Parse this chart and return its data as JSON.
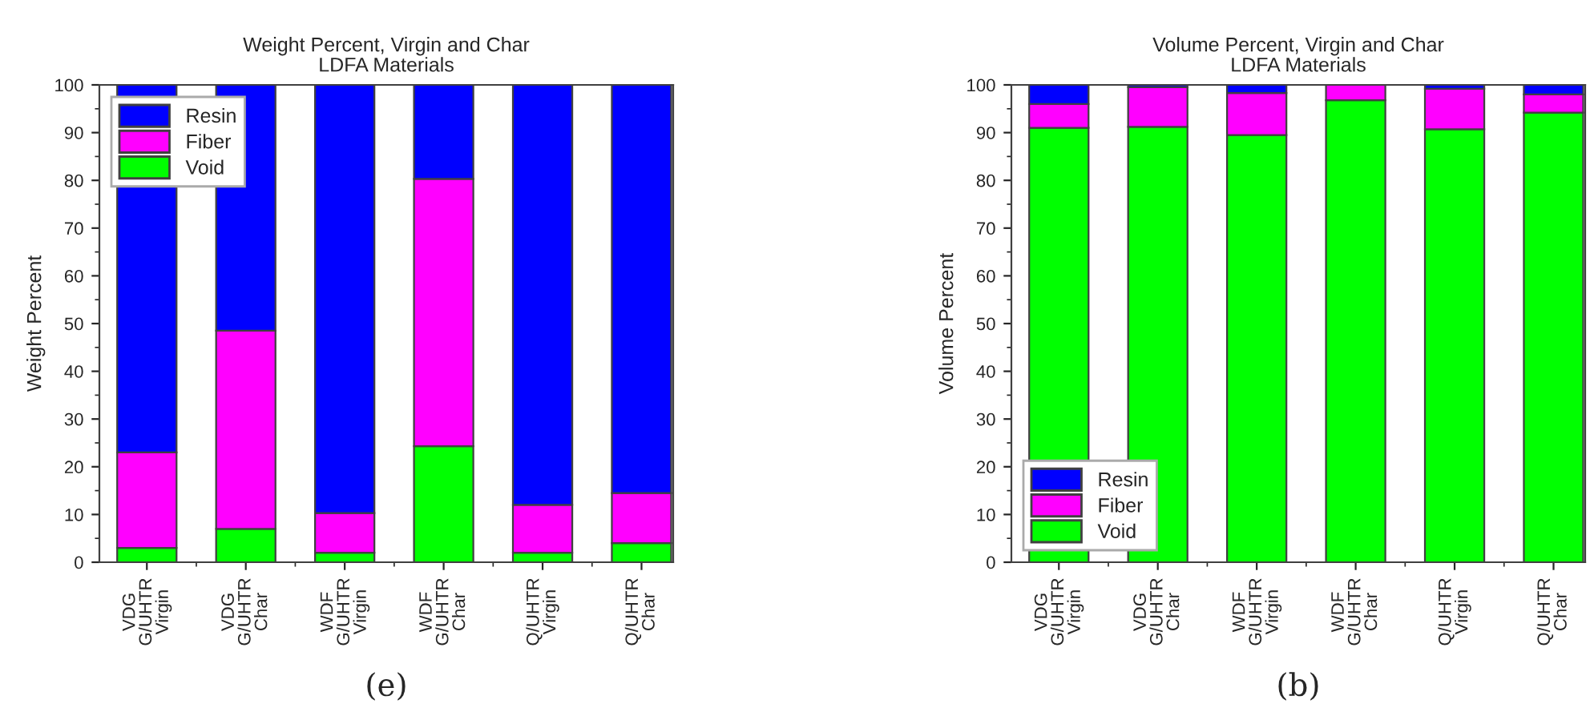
{
  "chart_data": [
    {
      "type": "bar",
      "stacked": true,
      "title": "Weight Percent, Virgin and Char\nLDFA Materials",
      "ylabel": "Weight Percent",
      "categories": [
        "VDG\nG/UHTR\nVirgin",
        "VDG\nG/UHTR\nChar",
        "WDF\nG/UHTR\nVirgin",
        "WDF\nG/UHTR\nChar",
        "Q/UHTR\nVirgin",
        "Q/UHTR\nChar"
      ],
      "series": [
        {
          "name": "Void",
          "color": "#00ff00",
          "values": [
            3,
            7,
            2,
            24.3,
            2,
            4
          ]
        },
        {
          "name": "Fiber",
          "color": "#ff00ff",
          "values": [
            20,
            41.5,
            8.3,
            56,
            10,
            10.5
          ]
        },
        {
          "name": "Resin",
          "color": "#0000ff",
          "values": [
            77,
            51.5,
            89.7,
            19.7,
            88,
            85.5
          ]
        }
      ],
      "ylim": [
        0,
        100
      ],
      "yticks": [
        0,
        10,
        20,
        30,
        40,
        50,
        60,
        70,
        80,
        90,
        100
      ],
      "grid": false,
      "legend": "top left",
      "annotations": [
        "(e)"
      ]
    },
    {
      "type": "bar",
      "stacked": true,
      "title": "Volume Percent, Virgin and Char\nLDFA Materials",
      "ylabel": "Volume Percent",
      "categories": [
        "VDG\nG/UHTR\nVirgin",
        "VDG\nG/UHTR\nChar",
        "WDF\nG/UHTR\nVirgin",
        "WDF\nG/UHTR\nChar",
        "Q/UHTR\nVirgin",
        "Q/UHTR\nChar"
      ],
      "series": [
        {
          "name": "Void",
          "color": "#00ff00",
          "values": [
            91,
            91.2,
            89.5,
            96.8,
            90.7,
            94.2
          ]
        },
        {
          "name": "Fiber",
          "color": "#ff00ff",
          "values": [
            5,
            8.3,
            8.8,
            3.2,
            8.5,
            3.8
          ]
        },
        {
          "name": "Resin",
          "color": "#0000ff",
          "values": [
            4,
            0.5,
            1.7,
            null,
            0.8,
            2
          ]
        }
      ],
      "ylim": [
        0,
        100
      ],
      "yticks": [
        0,
        10,
        20,
        30,
        40,
        50,
        60,
        70,
        80,
        90,
        100
      ],
      "grid": false,
      "legend": "bottom left",
      "annotations": [
        "(b)"
      ]
    }
  ]
}
